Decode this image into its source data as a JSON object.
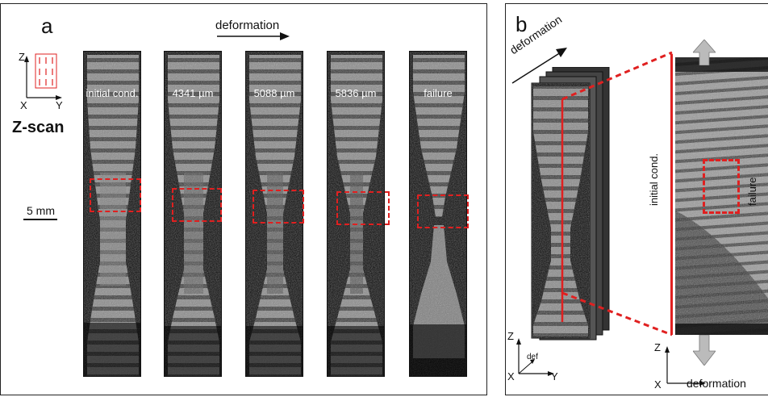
{
  "panel_a": {
    "label": "a",
    "deformation_label": "deformation",
    "axes": {
      "z": "Z",
      "x": "X",
      "y": "Y"
    },
    "scan_label": "Z-scan",
    "scale_bar": "5 mm",
    "specimens": [
      {
        "label": "initial cond."
      },
      {
        "label": "4341 µm"
      },
      {
        "label": "5088 µm"
      },
      {
        "label": "5836 µm"
      },
      {
        "label": "failure"
      }
    ]
  },
  "panel_b": {
    "label": "b",
    "deformation_label": "deformation",
    "initial_label": "initial cond.",
    "failure_label": "failure",
    "axes": {
      "z": "Z",
      "x": "X",
      "y": "Y",
      "def": "def",
      "deformation": "deformation"
    }
  },
  "colors": {
    "roi": "#e02020",
    "frame": "#222222",
    "arrow_fill": "#bbbbbb"
  }
}
